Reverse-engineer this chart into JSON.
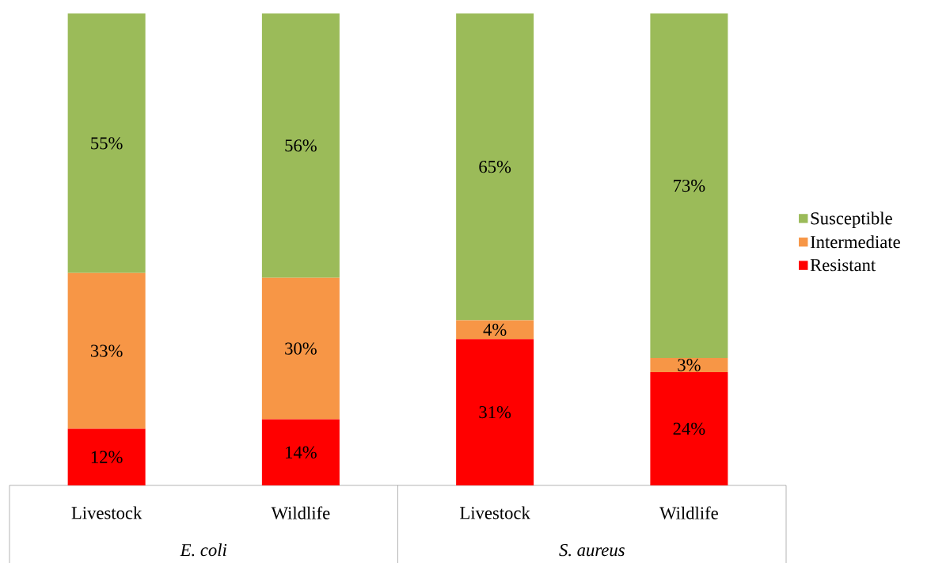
{
  "chart_data": {
    "type": "bar",
    "stacked": true,
    "legend": "right",
    "categories": [
      "Livestock",
      "Wildlife",
      "Livestock",
      "Wildlife"
    ],
    "series": [
      {
        "name": "Resistant",
        "color": "#ff0000",
        "values": [
          12,
          14,
          31,
          24
        ],
        "value_labels": [
          "12%",
          "14%",
          "31%",
          "24%"
        ]
      },
      {
        "name": "Intermediate",
        "color": "#f79646",
        "values": [
          33,
          30,
          4,
          3
        ],
        "value_labels": [
          "33%",
          "30%",
          "4%",
          "3%"
        ]
      },
      {
        "name": "Susceptible",
        "color": "#9bbb59",
        "values": [
          55,
          56,
          65,
          73
        ],
        "value_labels": [
          "55%",
          "56%",
          "65%",
          "73%"
        ]
      }
    ],
    "annotations": [
      "E. coli",
      "S. aureus"
    ]
  }
}
